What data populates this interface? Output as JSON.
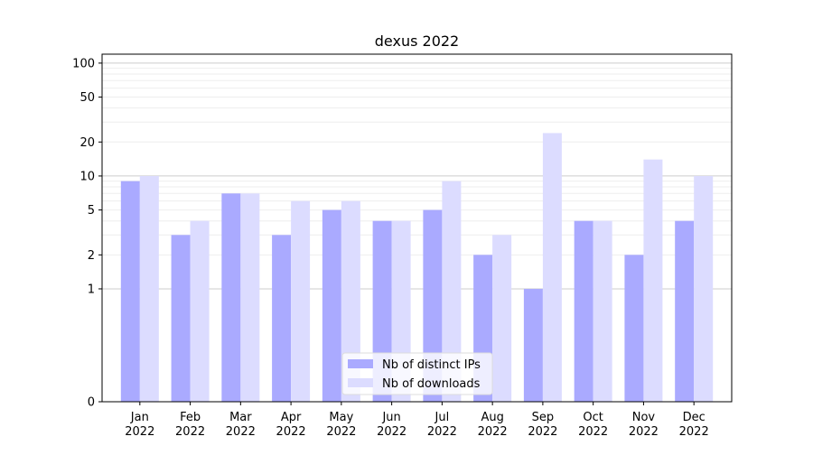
{
  "chart_data": {
    "type": "bar",
    "title": "dexus 2022",
    "xlabel": "",
    "ylabel": "",
    "y_scale": "symlog",
    "ylim": [
      0,
      120
    ],
    "y_ticks": [
      0,
      1,
      2,
      5,
      10,
      20,
      50,
      100
    ],
    "grid": "horizontal",
    "legend_position": "bottom-center",
    "categories": [
      [
        "Jan",
        "2022"
      ],
      [
        "Feb",
        "2022"
      ],
      [
        "Mar",
        "2022"
      ],
      [
        "Apr",
        "2022"
      ],
      [
        "May",
        "2022"
      ],
      [
        "Jun",
        "2022"
      ],
      [
        "Jul",
        "2022"
      ],
      [
        "Aug",
        "2022"
      ],
      [
        "Sep",
        "2022"
      ],
      [
        "Oct",
        "2022"
      ],
      [
        "Nov",
        "2022"
      ],
      [
        "Dec",
        "2022"
      ]
    ],
    "series": [
      {
        "name": "Nb of distinct IPs",
        "color": "#aaaaff",
        "values": [
          9,
          3,
          7,
          3,
          5,
          4,
          5,
          2,
          1,
          4,
          2,
          4
        ]
      },
      {
        "name": "Nb of downloads",
        "color": "#dcdcff",
        "values": [
          10,
          4,
          7,
          6,
          6,
          4,
          9,
          3,
          24,
          4,
          14,
          10
        ]
      }
    ]
  }
}
